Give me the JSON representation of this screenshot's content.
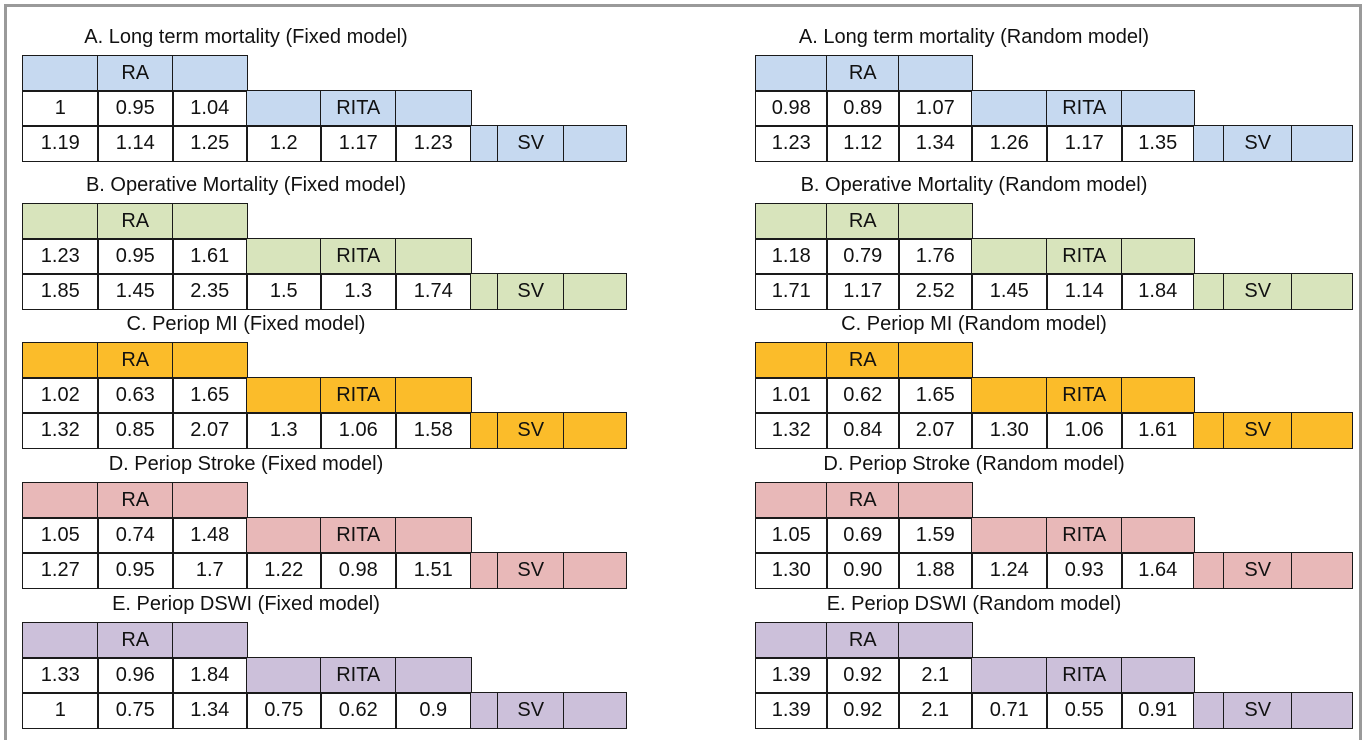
{
  "columns": [
    [
      {
        "title": "A. Long term mortality (Fixed model)",
        "color": "#c6d9f0",
        "ra_label": "RA",
        "row1": [
          "1",
          "0.95",
          "1.04"
        ],
        "rita_label": "RITA",
        "row2": [
          "1.19",
          "1.14",
          "1.25",
          "1.2",
          "1.17",
          "1.23"
        ],
        "sv_label": "SV"
      },
      {
        "title": "B. Operative Mortality  (Fixed model)",
        "color": "#d8e4bc",
        "ra_label": "RA",
        "row1": [
          "1.23",
          "0.95",
          "1.61"
        ],
        "rita_label": "RITA",
        "row2": [
          "1.85",
          "1.45",
          "2.35",
          "1.5",
          "1.3",
          "1.74"
        ],
        "sv_label": "SV"
      },
      {
        "title": "C. Periop MI  (Fixed model)",
        "color": "#fbbc2a",
        "ra_label": "RA",
        "row1": [
          "1.02",
          "0.63",
          "1.65"
        ],
        "rita_label": "RITA",
        "row2": [
          "1.32",
          "0.85",
          "2.07",
          "1.3",
          "1.06",
          "1.58"
        ],
        "sv_label": "SV"
      },
      {
        "title": "D. Periop Stroke (Fixed model)",
        "color": "#e8b8b8",
        "ra_label": "RA",
        "row1": [
          "1.05",
          "0.74",
          "1.48"
        ],
        "rita_label": "RITA",
        "row2": [
          "1.27",
          "0.95",
          "1.7",
          "1.22",
          "0.98",
          "1.51"
        ],
        "sv_label": "SV"
      },
      {
        "title": "E. Periop DSWI (Fixed model)",
        "color": "#ccc0da",
        "ra_label": "RA",
        "row1": [
          "1.33",
          "0.96",
          "1.84"
        ],
        "rita_label": "RITA",
        "row2": [
          "1",
          "0.75",
          "1.34",
          "0.75",
          "0.62",
          "0.9"
        ],
        "sv_label": "SV"
      }
    ],
    [
      {
        "title": "A. Long term mortality (Random model)",
        "color": "#c6d9f0",
        "ra_label": "RA",
        "row1": [
          "0.98",
          "0.89",
          "1.07"
        ],
        "rita_label": "RITA",
        "row2": [
          "1.23",
          "1.12",
          "1.34",
          "1.26",
          "1.17",
          "1.35"
        ],
        "sv_label": "SV"
      },
      {
        "title": "B. Operative Mortality  (Random model)",
        "color": "#d8e4bc",
        "ra_label": "RA",
        "row1": [
          "1.18",
          "0.79",
          "1.76"
        ],
        "rita_label": "RITA",
        "row2": [
          "1.71",
          "1.17",
          "2.52",
          "1.45",
          "1.14",
          "1.84"
        ],
        "sv_label": "SV"
      },
      {
        "title": "C. Periop MI  (Random model)",
        "color": "#fbbc2a",
        "ra_label": "RA",
        "row1": [
          "1.01",
          "0.62",
          "1.65"
        ],
        "rita_label": "RITA",
        "row2": [
          "1.32",
          "0.84",
          "2.07",
          "1.30",
          "1.06",
          "1.61"
        ],
        "sv_label": "SV"
      },
      {
        "title": "D. Periop Stroke (Random model)",
        "color": "#e8b8b8",
        "ra_label": "RA",
        "row1": [
          "1.05",
          "0.69",
          "1.59"
        ],
        "rita_label": "RITA",
        "row2": [
          "1.30",
          "0.90",
          "1.88",
          "1.24",
          "0.93",
          "1.64"
        ],
        "sv_label": "SV"
      },
      {
        "title": "E. Periop DSWI (Random model)",
        "color": "#ccc0da",
        "ra_label": "RA",
        "row1": [
          "1.39",
          "0.92",
          "2.1"
        ],
        "rita_label": "RITA",
        "row2": [
          "1.39",
          "0.92",
          "2.1",
          "0.71",
          "0.55",
          "0.91"
        ],
        "sv_label": "SV"
      }
    ]
  ]
}
